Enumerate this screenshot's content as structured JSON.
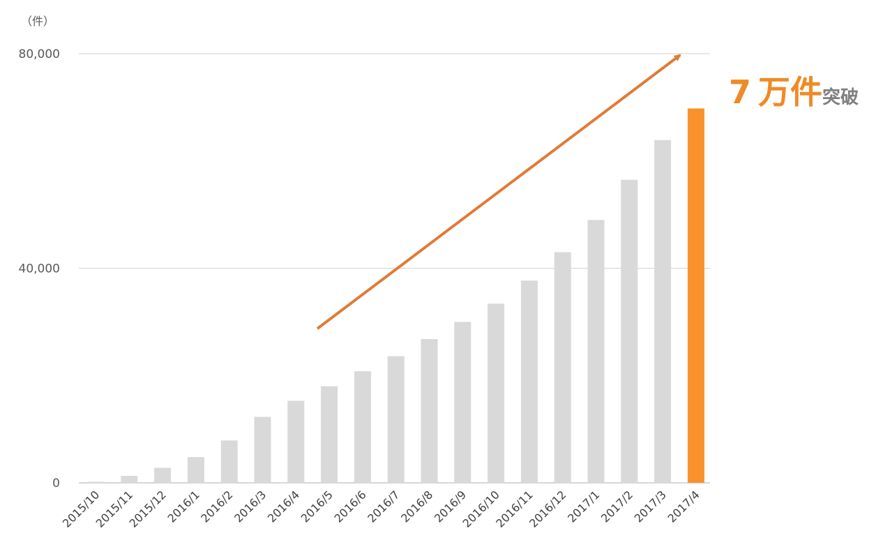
{
  "chart_data": {
    "type": "bar",
    "unit_label": "（件）",
    "categories": [
      "2015/10",
      "2015/11",
      "2015/12",
      "2016/1",
      "2016/2",
      "2016/3",
      "2016/4",
      "2016/5",
      "2016/6",
      "2016/7",
      "2016/8",
      "2016/9",
      "2016/10",
      "2016/11",
      "2016/12",
      "2017/1",
      "2017/2",
      "2017/3",
      "2017/4"
    ],
    "values": [
      200,
      1300,
      2800,
      4800,
      7900,
      12300,
      15300,
      18000,
      20800,
      23600,
      26800,
      30000,
      33400,
      37700,
      43000,
      49000,
      56500,
      63900,
      69800
    ],
    "ylim": [
      0,
      80000
    ],
    "yticks": [
      0,
      40000,
      80000
    ],
    "ytick_labels": [
      "0",
      "40,000",
      "80,000"
    ],
    "grid": true,
    "highlight_index": 18,
    "colors": {
      "bar": "#d9d9d9",
      "highlight": "#f7922d",
      "arrow": "#e07b39",
      "callout_number": "#f08a24",
      "callout_text": "#7f7f7f",
      "grid": "#d9d9d9"
    },
    "callout": {
      "number": "7",
      "unit": "万件",
      "suffix": "突破"
    }
  }
}
